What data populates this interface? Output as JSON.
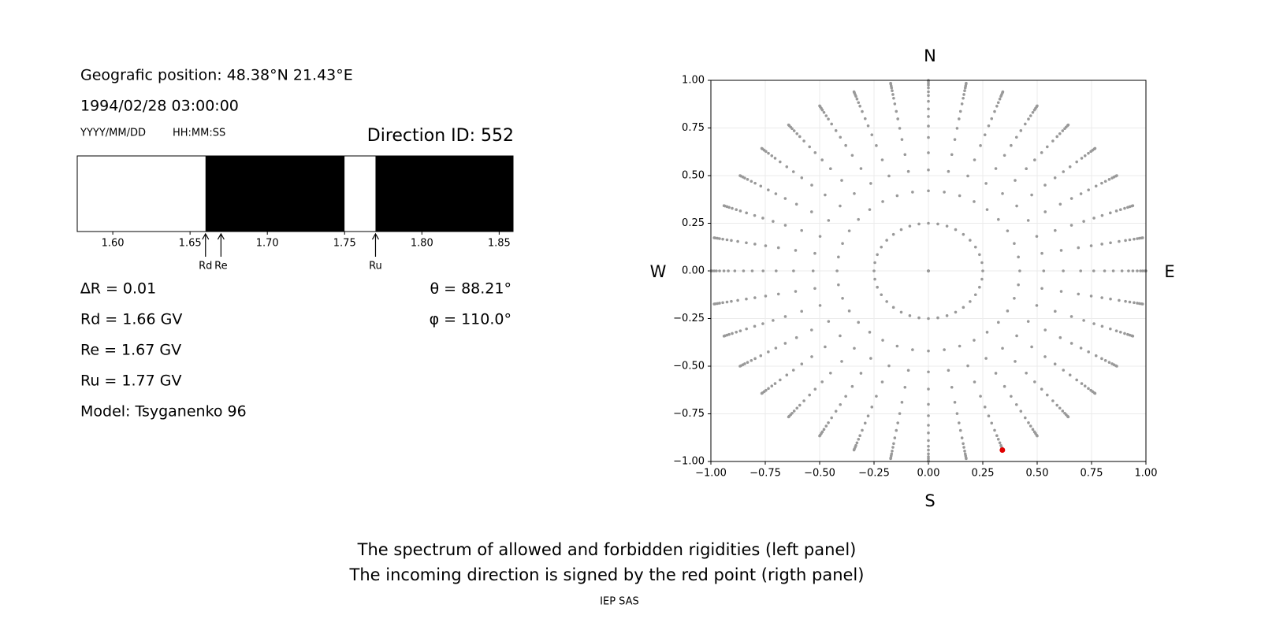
{
  "left_panel": {
    "position": "Geografic position: 48.38°N 21.43°E",
    "datetime": "1994/02/28 03:00:00",
    "date_format": "YYYY/MM/DD",
    "time_format": "HH:MM:SS",
    "direction": "Direction ID: 552",
    "spectrum": {
      "xlim": [
        1.577,
        1.859
      ],
      "xticks": [
        {
          "value": 1.6,
          "label": "1.60"
        },
        {
          "value": 1.65,
          "label": "1.65"
        },
        {
          "value": 1.7,
          "label": "1.70"
        },
        {
          "value": 1.75,
          "label": "1.75"
        },
        {
          "value": 1.8,
          "label": "1.80"
        },
        {
          "value": 1.85,
          "label": "1.85"
        }
      ],
      "segments": [
        {
          "start": 1.577,
          "end": 1.66,
          "color": "#ffffff"
        },
        {
          "start": 1.66,
          "end": 1.75,
          "color": "#000000"
        },
        {
          "start": 1.75,
          "end": 1.77,
          "color": "#ffffff"
        },
        {
          "start": 1.77,
          "end": 1.859,
          "color": "#000000"
        }
      ],
      "markers": [
        {
          "label": "Rd",
          "value": 1.66
        },
        {
          "label": "Re",
          "value": 1.67
        },
        {
          "label": "Ru",
          "value": 1.77
        }
      ]
    },
    "info_left": [
      "∆R = 0.01",
      "Rd = 1.66 GV",
      "Re = 1.67 GV",
      "Ru = 1.77 GV",
      "Model: Tsyganenko 96"
    ],
    "info_right": [
      "θ = 88.21°",
      "φ = 110.0°"
    ]
  },
  "chart_data": {
    "type": "scatter",
    "xlim": [
      -1,
      1
    ],
    "ylim": [
      -1,
      1
    ],
    "xticks": [
      {
        "value": -1,
        "label": "−1.00"
      },
      {
        "value": -0.75,
        "label": "−0.75"
      },
      {
        "value": -0.5,
        "label": "−0.50"
      },
      {
        "value": -0.25,
        "label": "−0.25"
      },
      {
        "value": 0,
        "label": "0.00"
      },
      {
        "value": 0.25,
        "label": "0.25"
      },
      {
        "value": 0.5,
        "label": "0.50"
      },
      {
        "value": 0.75,
        "label": "0.75"
      },
      {
        "value": 1,
        "label": "1.00"
      }
    ],
    "yticks": [
      {
        "value": -1,
        "label": "−1.00"
      },
      {
        "value": -0.75,
        "label": "−0.75"
      },
      {
        "value": -0.5,
        "label": "−0.50"
      },
      {
        "value": -0.25,
        "label": "−0.25"
      },
      {
        "value": 0,
        "label": "0.00"
      },
      {
        "value": 0.25,
        "label": "0.25"
      },
      {
        "value": 0.5,
        "label": "0.50"
      },
      {
        "value": 0.75,
        "label": "0.75"
      },
      {
        "value": 1,
        "label": "1.00"
      }
    ],
    "grid": true,
    "compass": {
      "north": "N",
      "south": "S",
      "west": "W",
      "east": "E"
    },
    "points": {
      "color": "#999999",
      "r": [
        0,
        0.25,
        0.42,
        0.53,
        0.62,
        0.7,
        0.76,
        0.81,
        0.85,
        0.89,
        0.92,
        0.94,
        0.96,
        0.975,
        0.985,
        0.995,
        1.0
      ],
      "azimuth": [
        0,
        10,
        20,
        30,
        40,
        50,
        60,
        70,
        80,
        90,
        100,
        110,
        120,
        130,
        140,
        150,
        160,
        170,
        180,
        190,
        200,
        210,
        220,
        230,
        240,
        250,
        260,
        270,
        280,
        290,
        300,
        310,
        320,
        330,
        340,
        350
      ]
    },
    "highlight": {
      "x": 0.34,
      "y": -0.94,
      "color": "#e00000"
    }
  },
  "caption": [
    "The spectrum of allowed and forbidden rigidities (left panel)",
    "The incoming direction is signed by the red point (rigth panel)"
  ],
  "footer": "IEP SAS"
}
